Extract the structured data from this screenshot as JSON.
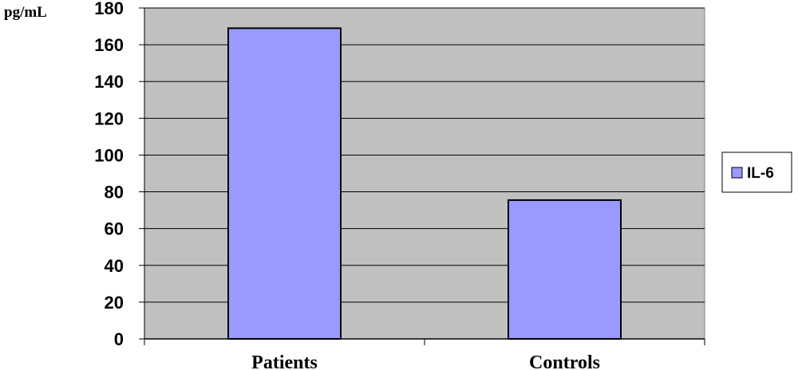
{
  "chart_data": {
    "type": "bar",
    "ylabel": "pg/mL",
    "categories": [
      "Patients",
      "Controls"
    ],
    "series": [
      {
        "name": "IL-6",
        "values": [
          169,
          75.5
        ]
      }
    ],
    "ylim": [
      0,
      180
    ],
    "yticks": [
      0,
      20,
      40,
      60,
      80,
      100,
      120,
      140,
      160,
      180
    ],
    "grid": true,
    "legend": "right",
    "colors": {
      "plot_background": "#c0c0c0",
      "bar_fill": "#9999ff",
      "bar_stroke": "#000000",
      "gridline": "#000000"
    }
  }
}
